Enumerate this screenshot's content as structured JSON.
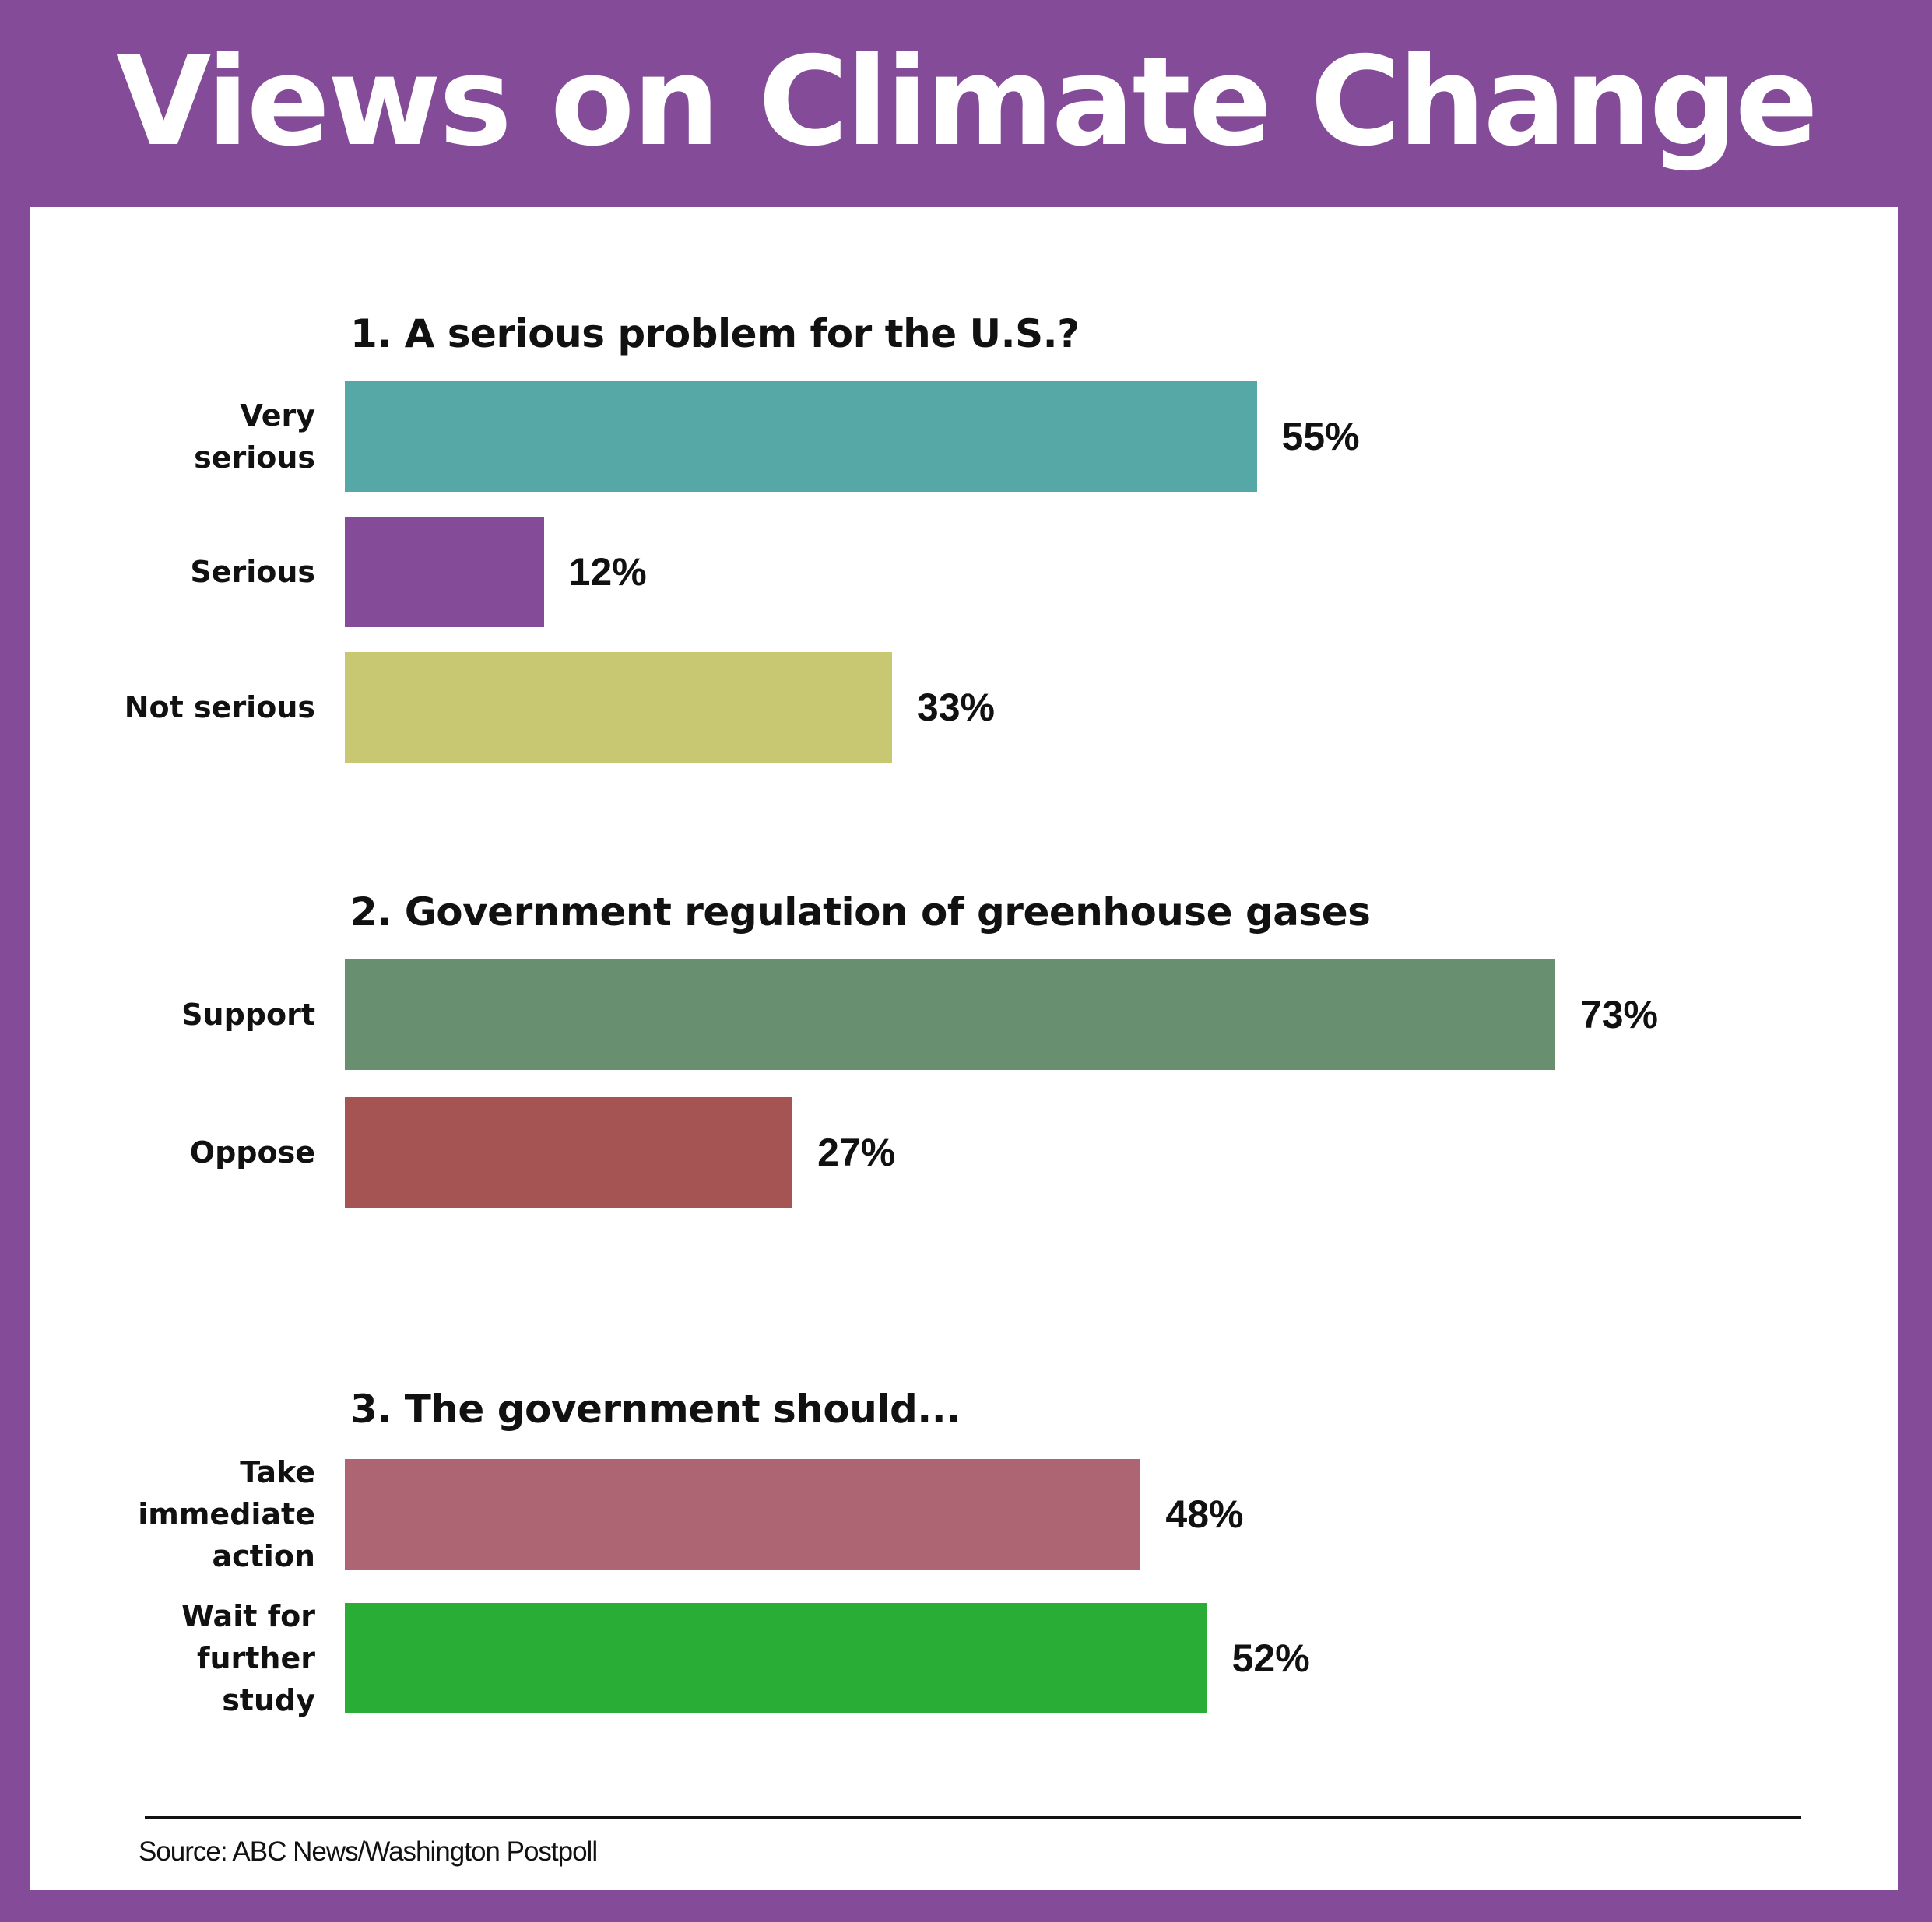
{
  "chart_data": {
    "type": "bar",
    "orientation": "horizontal",
    "title": "Views on Climate Change",
    "source": "Source: ABC News/Washington Postpoll",
    "groups": [
      {
        "title": "1. A serious problem for the U.S.?",
        "categories": [
          "Very\nserious",
          "Serious",
          "Not serious"
        ],
        "values": [
          55,
          12,
          33
        ],
        "value_labels": [
          "55%",
          "12%",
          "33%"
        ],
        "colors": [
          "#55a8a6",
          "#844b98",
          "#c8c872"
        ]
      },
      {
        "title": "2. Government regulation of greenhouse gases",
        "categories": [
          "Support",
          "Oppose"
        ],
        "values": [
          73,
          27
        ],
        "value_labels": [
          "73%",
          "27%"
        ],
        "colors": [
          "#688f6f",
          "#a65453"
        ]
      },
      {
        "title": "3. The government should...",
        "categories": [
          "Take\nimmediate\naction",
          "Wait for\nfurther\nstudy"
        ],
        "values": [
          48,
          52
        ],
        "value_labels": [
          "48%",
          "52%"
        ],
        "colors": [
          "#ad6574",
          "#2aad36"
        ]
      }
    ]
  }
}
